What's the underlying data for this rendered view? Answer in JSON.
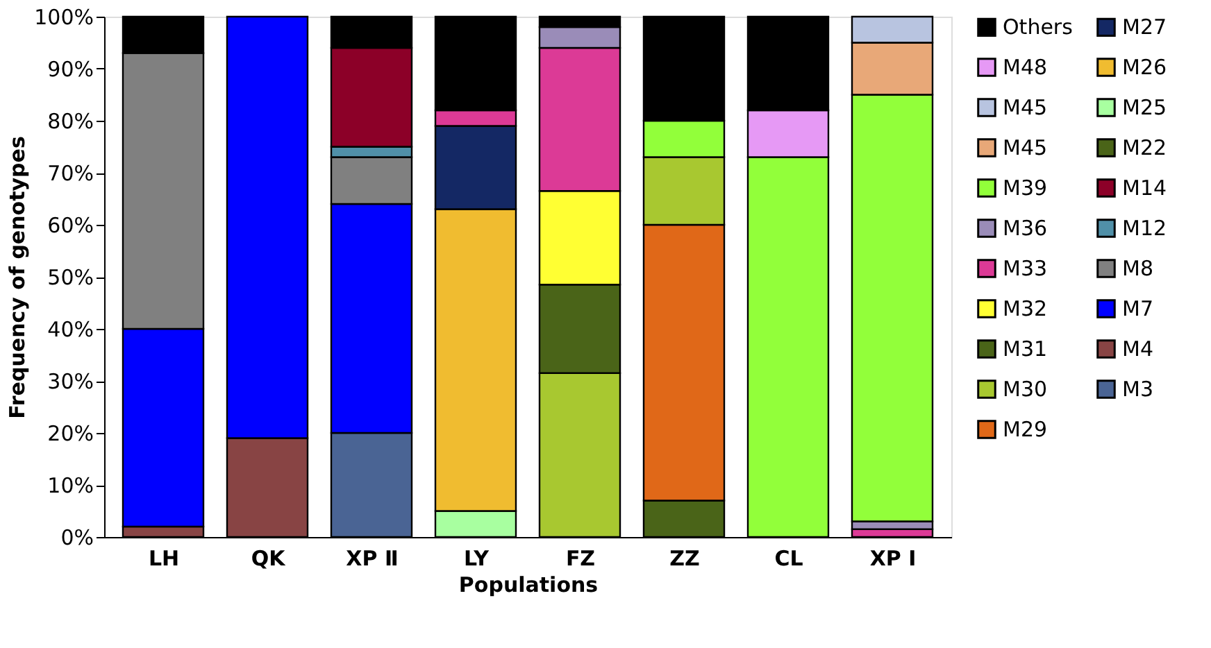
{
  "chart_data": {
    "type": "bar",
    "stacked": true,
    "xlabel": "Populations",
    "ylabel": "Frequency of genotypes",
    "categories": [
      "LH",
      "QK",
      "XP Ⅱ",
      "LY",
      "FZ",
      "ZZ",
      "CL",
      "XP Ⅰ"
    ],
    "ylim": [
      0,
      100
    ],
    "yticks": [
      {
        "value": 0,
        "label": "0%"
      },
      {
        "value": 10,
        "label": "10%"
      },
      {
        "value": 20,
        "label": "20%"
      },
      {
        "value": 30,
        "label": "30%"
      },
      {
        "value": 40,
        "label": "40%"
      },
      {
        "value": 50,
        "label": "50%"
      },
      {
        "value": 60,
        "label": "60%"
      },
      {
        "value": 70,
        "label": "70%"
      },
      {
        "value": 80,
        "label": "80%"
      },
      {
        "value": 90,
        "label": "90%"
      },
      {
        "value": 100,
        "label": "100%"
      }
    ],
    "grid": false,
    "legend": "right",
    "series": [
      {
        "name": "M3",
        "color": "#4a6494",
        "values": [
          null,
          null,
          20,
          null,
          null,
          null,
          null,
          null
        ]
      },
      {
        "name": "M4",
        "color": "#884444",
        "values": [
          2,
          19,
          null,
          null,
          null,
          null,
          null,
          null
        ]
      },
      {
        "name": "M7",
        "color": "#0000ff",
        "values": [
          38,
          81,
          44,
          null,
          null,
          null,
          null,
          null
        ]
      },
      {
        "name": "M8",
        "color": "#808080",
        "values": [
          53,
          null,
          9,
          null,
          null,
          null,
          null,
          null
        ]
      },
      {
        "name": "M12",
        "color": "#5090a8",
        "values": [
          null,
          null,
          2,
          null,
          null,
          null,
          null,
          null
        ]
      },
      {
        "name": "M14",
        "color": "#8c0028",
        "values": [
          null,
          null,
          19,
          null,
          null,
          null,
          null,
          null
        ]
      },
      {
        "name": "M22",
        "color": "#4a6418",
        "values": [
          null,
          null,
          null,
          null,
          null,
          7,
          null,
          null
        ]
      },
      {
        "name": "M25",
        "color": "#a8ffa0",
        "values": [
          null,
          null,
          null,
          5,
          null,
          null,
          null,
          null
        ]
      },
      {
        "name": "M26",
        "color": "#f0bc30",
        "values": [
          null,
          null,
          null,
          58,
          null,
          null,
          null,
          null
        ]
      },
      {
        "name": "M27",
        "color": "#142864",
        "values": [
          null,
          null,
          null,
          16,
          null,
          null,
          null,
          null
        ]
      },
      {
        "name": "M29",
        "color": "#e06818",
        "values": [
          null,
          null,
          null,
          null,
          null,
          53,
          null,
          null
        ]
      },
      {
        "name": "M30",
        "color": "#a8c830",
        "values": [
          null,
          null,
          null,
          null,
          31.5,
          13,
          null,
          null
        ]
      },
      {
        "name": "M31",
        "color": "#4a6418",
        "values": [
          null,
          null,
          null,
          null,
          17,
          null,
          null,
          null
        ]
      },
      {
        "name": "M32",
        "color": "#ffff33",
        "values": [
          null,
          null,
          null,
          null,
          18,
          null,
          null,
          null
        ]
      },
      {
        "name": "M33",
        "color": "#dc3a96",
        "values": [
          null,
          null,
          null,
          3,
          27.5,
          null,
          null,
          1.5
        ]
      },
      {
        "name": "M36",
        "color": "#9a8cb8",
        "values": [
          null,
          null,
          null,
          null,
          4,
          null,
          null,
          1.5
        ]
      },
      {
        "name": "M39",
        "color": "#92ff3a",
        "values": [
          null,
          null,
          null,
          null,
          null,
          7,
          73,
          82
        ]
      },
      {
        "name": "M45",
        "color": "#e8a878",
        "values": [
          null,
          null,
          null,
          null,
          null,
          null,
          null,
          10
        ]
      },
      {
        "name": "M45",
        "color": "#b8c4e0",
        "values": [
          null,
          null,
          null,
          null,
          null,
          null,
          null,
          5
        ]
      },
      {
        "name": "M48",
        "color": "#e699f5",
        "values": [
          null,
          null,
          null,
          null,
          null,
          null,
          9,
          null
        ]
      },
      {
        "name": "Others",
        "color": "#000000",
        "values": [
          7,
          null,
          6,
          18,
          2,
          20,
          18,
          null
        ]
      }
    ]
  }
}
